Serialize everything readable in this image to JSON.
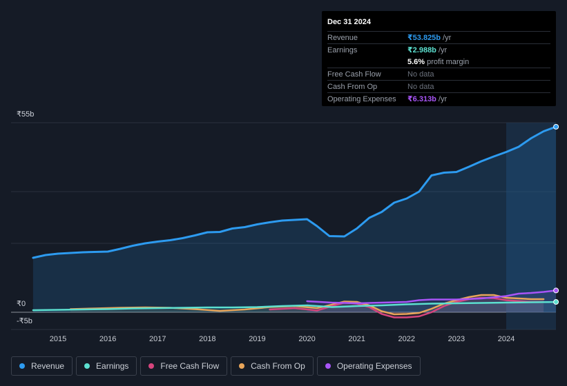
{
  "tooltip": {
    "date": "Dec 31 2024",
    "rows": {
      "revenue": {
        "label": "Revenue",
        "value": "₹53.825b",
        "unit": "/yr",
        "color": "#2d9bf0"
      },
      "earnings": {
        "label": "Earnings",
        "value": "₹2.988b",
        "unit": "/yr",
        "color": "#5ce0d0"
      },
      "margin": {
        "value": "5.6%",
        "unit": "profit margin"
      },
      "fcf": {
        "label": "Free Cash Flow",
        "value": "No data"
      },
      "cfo": {
        "label": "Cash From Op",
        "value": "No data"
      },
      "opex": {
        "label": "Operating Expenses",
        "value": "₹6.313b",
        "unit": "/yr",
        "color": "#a855f7"
      }
    }
  },
  "legend": [
    {
      "key": "revenue",
      "label": "Revenue",
      "color": "#2d9bf0"
    },
    {
      "key": "earnings",
      "label": "Earnings",
      "color": "#5ce0d0"
    },
    {
      "key": "fcf",
      "label": "Free Cash Flow",
      "color": "#d6457d"
    },
    {
      "key": "cfo",
      "label": "Cash From Op",
      "color": "#e8a55a"
    },
    {
      "key": "opex",
      "label": "Operating Expenses",
      "color": "#a855f7"
    }
  ],
  "chart_data": {
    "type": "line",
    "ylim": [
      -5,
      55
    ],
    "y_tick_labels": [
      {
        "value": 55,
        "label": "₹55b"
      },
      {
        "value": 0,
        "label": "₹0"
      },
      {
        "value": -5,
        "label": "-₹5b"
      }
    ],
    "xlim": [
      2014.4,
      2025.0
    ],
    "x_ticks": [
      2015,
      2016,
      2017,
      2018,
      2019,
      2020,
      2021,
      2022,
      2023,
      2024
    ],
    "x_tick_labels": [
      "2015",
      "2016",
      "2017",
      "2018",
      "2019",
      "2020",
      "2021",
      "2022",
      "2023",
      "2024"
    ],
    "highlight_from": 2024.0,
    "series": [
      {
        "key": "revenue",
        "name": "Revenue",
        "color": "#2d9bf0",
        "fill": true,
        "points": [
          [
            2014.5,
            15.8
          ],
          [
            2014.75,
            16.6
          ],
          [
            2015.0,
            17.0
          ],
          [
            2015.5,
            17.4
          ],
          [
            2016.0,
            17.6
          ],
          [
            2016.25,
            18.4
          ],
          [
            2016.5,
            19.3
          ],
          [
            2016.75,
            20.0
          ],
          [
            2017.0,
            20.5
          ],
          [
            2017.25,
            20.9
          ],
          [
            2017.5,
            21.5
          ],
          [
            2017.75,
            22.3
          ],
          [
            2018.0,
            23.2
          ],
          [
            2018.25,
            23.3
          ],
          [
            2018.5,
            24.3
          ],
          [
            2018.75,
            24.7
          ],
          [
            2019.0,
            25.5
          ],
          [
            2019.25,
            26.1
          ],
          [
            2019.5,
            26.6
          ],
          [
            2019.75,
            26.8
          ],
          [
            2020.0,
            27.0
          ],
          [
            2020.2,
            25.0
          ],
          [
            2020.45,
            22.1
          ],
          [
            2020.75,
            22.0
          ],
          [
            2021.0,
            24.3
          ],
          [
            2021.25,
            27.4
          ],
          [
            2021.5,
            29.1
          ],
          [
            2021.75,
            31.8
          ],
          [
            2022.0,
            33.0
          ],
          [
            2022.25,
            35.0
          ],
          [
            2022.5,
            39.7
          ],
          [
            2022.75,
            40.5
          ],
          [
            2023.0,
            40.7
          ],
          [
            2023.25,
            42.2
          ],
          [
            2023.5,
            43.8
          ],
          [
            2023.75,
            45.2
          ],
          [
            2024.0,
            46.5
          ],
          [
            2024.25,
            48.0
          ],
          [
            2024.5,
            50.5
          ],
          [
            2024.75,
            52.5
          ],
          [
            2025.0,
            53.825
          ]
        ]
      },
      {
        "key": "earnings",
        "name": "Earnings",
        "color": "#5ce0d0",
        "points": [
          [
            2014.5,
            0.6
          ],
          [
            2015.0,
            0.7
          ],
          [
            2015.5,
            0.8
          ],
          [
            2016.0,
            0.9
          ],
          [
            2016.5,
            1.1
          ],
          [
            2017.0,
            1.2
          ],
          [
            2017.5,
            1.3
          ],
          [
            2018.0,
            1.4
          ],
          [
            2018.5,
            1.4
          ],
          [
            2019.0,
            1.5
          ],
          [
            2019.5,
            1.8
          ],
          [
            2020.0,
            2.0
          ],
          [
            2020.5,
            1.5
          ],
          [
            2021.0,
            1.8
          ],
          [
            2021.5,
            2.0
          ],
          [
            2022.0,
            2.3
          ],
          [
            2022.5,
            2.5
          ],
          [
            2023.0,
            2.6
          ],
          [
            2023.5,
            2.7
          ],
          [
            2024.0,
            2.8
          ],
          [
            2024.5,
            2.9
          ],
          [
            2025.0,
            2.988
          ]
        ]
      },
      {
        "key": "fcf",
        "name": "Free Cash Flow",
        "color": "#d6457d",
        "points": [
          [
            2019.25,
            0.8
          ],
          [
            2019.75,
            1.2
          ],
          [
            2020.2,
            0.5
          ],
          [
            2020.5,
            1.8
          ],
          [
            2020.75,
            2.8
          ],
          [
            2021.0,
            2.5
          ],
          [
            2021.25,
            1.5
          ],
          [
            2021.5,
            -0.5
          ],
          [
            2021.75,
            -1.5
          ],
          [
            2022.0,
            -1.5
          ],
          [
            2022.25,
            -1.2
          ],
          [
            2022.5,
            0.0
          ],
          [
            2022.75,
            1.8
          ],
          [
            2023.0,
            3.0
          ],
          [
            2023.25,
            3.8
          ],
          [
            2023.5,
            4.2
          ],
          [
            2023.75,
            4.1
          ],
          [
            2024.0,
            3.5
          ],
          [
            2024.5,
            3.0
          ],
          [
            2024.75,
            3.0
          ]
        ]
      },
      {
        "key": "cfo",
        "name": "Cash From Op",
        "color": "#e8a55a",
        "points": [
          [
            2015.25,
            0.9
          ],
          [
            2015.75,
            1.1
          ],
          [
            2016.25,
            1.3
          ],
          [
            2016.75,
            1.4
          ],
          [
            2017.25,
            1.3
          ],
          [
            2017.75,
            0.9
          ],
          [
            2018.25,
            0.4
          ],
          [
            2018.75,
            0.8
          ],
          [
            2019.25,
            1.5
          ],
          [
            2019.75,
            1.8
          ],
          [
            2020.2,
            1.2
          ],
          [
            2020.5,
            2.2
          ],
          [
            2020.75,
            3.1
          ],
          [
            2021.0,
            3.0
          ],
          [
            2021.25,
            2.0
          ],
          [
            2021.5,
            0.3
          ],
          [
            2021.75,
            -0.6
          ],
          [
            2022.0,
            -0.5
          ],
          [
            2022.25,
            -0.2
          ],
          [
            2022.5,
            1.0
          ],
          [
            2022.75,
            2.5
          ],
          [
            2023.0,
            3.5
          ],
          [
            2023.25,
            4.4
          ],
          [
            2023.5,
            5.0
          ],
          [
            2023.75,
            5.0
          ],
          [
            2024.0,
            4.2
          ],
          [
            2024.5,
            3.8
          ],
          [
            2024.75,
            3.8
          ]
        ]
      },
      {
        "key": "opex",
        "name": "Operating Expenses",
        "color": "#a855f7",
        "points": [
          [
            2020.0,
            3.2
          ],
          [
            2020.5,
            2.8
          ],
          [
            2021.0,
            2.6
          ],
          [
            2021.5,
            2.8
          ],
          [
            2022.0,
            3.0
          ],
          [
            2022.25,
            3.5
          ],
          [
            2022.5,
            3.7
          ],
          [
            2023.0,
            3.7
          ],
          [
            2023.5,
            4.0
          ],
          [
            2024.0,
            4.7
          ],
          [
            2024.25,
            5.4
          ],
          [
            2024.5,
            5.6
          ],
          [
            2024.75,
            5.9
          ],
          [
            2025.0,
            6.313
          ]
        ]
      }
    ]
  }
}
